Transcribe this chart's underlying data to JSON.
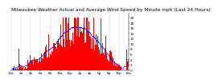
{
  "title": "Milwaukee Weather Actual and Average Wind Speed by Minute mph (Last 24 Hours)",
  "background_color": "#ffffff",
  "bar_color": "#ff0000",
  "line_color": "#0000ff",
  "n_points": 1440,
  "ylim": [
    0,
    22
  ],
  "yticks": [
    0,
    2,
    4,
    6,
    8,
    10,
    12,
    14,
    16,
    18,
    20
  ],
  "grid_color": "#aaaaaa",
  "title_fontsize": 4.2,
  "tick_fontsize": 3.0
}
